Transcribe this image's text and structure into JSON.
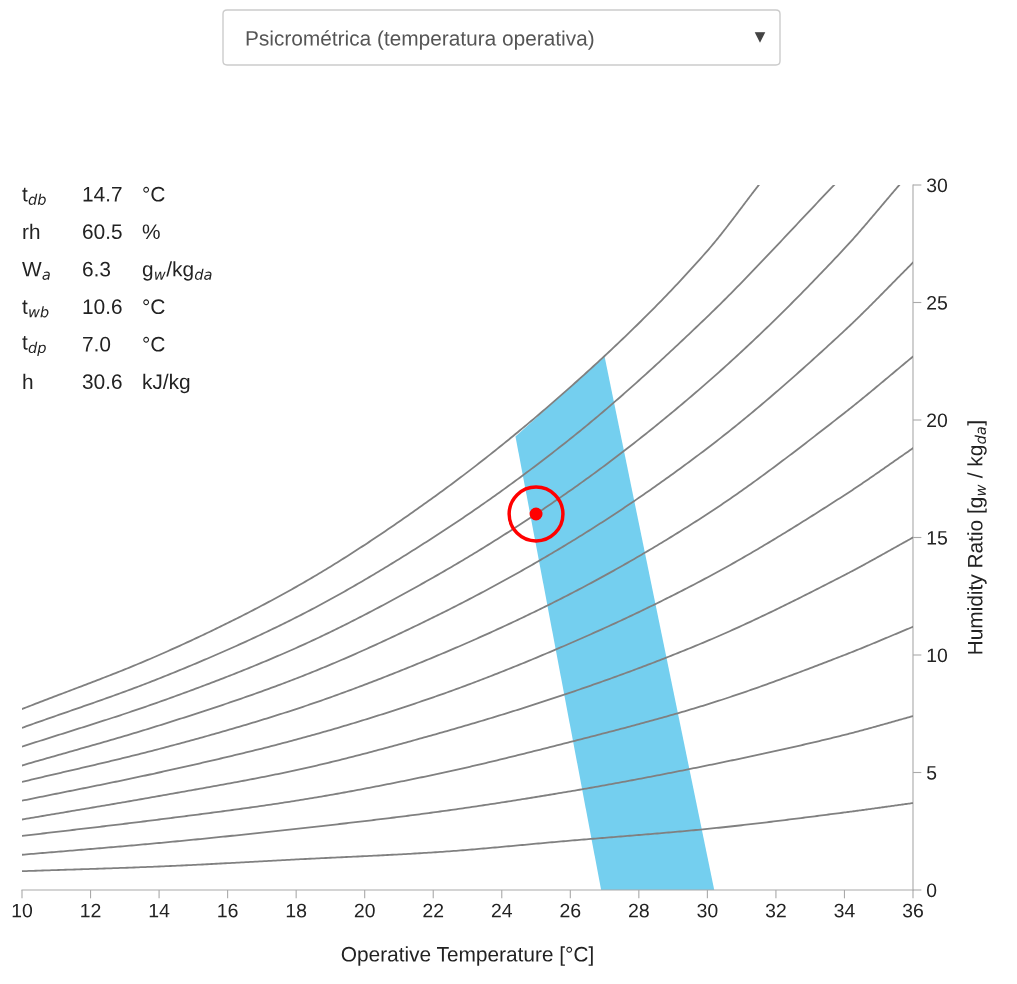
{
  "chart_data": {
    "type": "line",
    "title": "Psicrométrica (temperatura operativa)",
    "xlabel": "Operative Temperature [°C]",
    "ylabel": "Humidity Ratio [g$_{w}$ / kg$_{da}$]",
    "xlim": [
      10,
      36
    ],
    "xticks": [
      10,
      12,
      14,
      16,
      18,
      20,
      22,
      24,
      26,
      28,
      30,
      32,
      34,
      36
    ],
    "ylim": [
      0,
      30
    ],
    "yticks": [
      0,
      5,
      10,
      15,
      20,
      25,
      30
    ],
    "grid": false,
    "legend": false,
    "marker": "none",
    "line_style": "solid",
    "annotations": [
      "t$_{db}$",
      "14.7",
      "°C",
      "rh",
      "60.5",
      "%",
      "W$_{a}$",
      "6.3",
      "g$_{w}$/kg$_{da}$",
      "t$_{wb}$",
      "10.6",
      "°C",
      "t$_{dp}$",
      "7.0",
      "°C",
      "h",
      "30.6",
      "kJ/kg"
    ],
    "series": [
      {
        "type": "area",
        "color": "#74cfef",
        "x": [
          24.4,
          27.0,
          30.2,
          26.9
        ],
        "values": [
          19.3,
          22.7,
          0,
          0
        ]
      },
      {
        "color": "#808080",
        "x": [
          10,
          14,
          18,
          22,
          26,
          30,
          34,
          36
        ],
        "values": [
          0.8,
          1.0,
          1.3,
          1.6,
          2.1,
          2.6,
          3.3,
          3.7
        ]
      },
      {
        "color": "#808080",
        "x": [
          10,
          14,
          18,
          22,
          26,
          30,
          34,
          36
        ],
        "values": [
          1.5,
          2.0,
          2.6,
          3.3,
          4.2,
          5.3,
          6.6,
          7.4
        ]
      },
      {
        "color": "#808080",
        "x": [
          10,
          14,
          18,
          22,
          26,
          30,
          34,
          36
        ],
        "values": [
          2.3,
          3.0,
          3.8,
          4.9,
          6.3,
          7.9,
          10.0,
          11.2
        ]
      },
      {
        "color": "#808080",
        "x": [
          10,
          14,
          18,
          22,
          26,
          30,
          34,
          36
        ],
        "values": [
          3.0,
          4.0,
          5.1,
          6.6,
          8.4,
          10.6,
          13.4,
          15.0
        ]
      },
      {
        "color": "#808080",
        "x": [
          10,
          14,
          18,
          22,
          26,
          30,
          34,
          36
        ],
        "values": [
          3.8,
          5.0,
          6.4,
          8.2,
          10.5,
          13.3,
          16.8,
          18.8
        ]
      },
      {
        "color": "#808080",
        "x": [
          10,
          14,
          18,
          22,
          26,
          30,
          34,
          36
        ],
        "values": [
          4.6,
          6.0,
          7.7,
          9.9,
          12.6,
          16.0,
          20.3,
          22.7
        ]
      },
      {
        "color": "#808080",
        "x": [
          10,
          14,
          18,
          22,
          26,
          30,
          34,
          36
        ],
        "values": [
          5.3,
          7.0,
          9.0,
          11.6,
          14.8,
          18.8,
          23.8,
          26.7
        ]
      },
      {
        "color": "#808080",
        "x": [
          10,
          14,
          18,
          22,
          26,
          30,
          34,
          35.6
        ],
        "values": [
          6.1,
          8.0,
          10.3,
          13.3,
          17.0,
          21.6,
          27.3,
          30
        ]
      },
      {
        "color": "#808080",
        "x": [
          10,
          14,
          18,
          22,
          26,
          30,
          33.7
        ],
        "values": [
          6.9,
          9.0,
          11.6,
          15.0,
          19.2,
          24.4,
          30
        ]
      },
      {
        "color": "#808080",
        "x": [
          10,
          14,
          18,
          22,
          26,
          30,
          31.5
        ],
        "values": [
          7.7,
          10.0,
          12.9,
          16.7,
          21.4,
          27.2,
          30
        ]
      },
      {
        "type": "scatter",
        "color": "#ff0000",
        "marker": "circle",
        "x": [
          25.0
        ],
        "values": [
          16.0
        ]
      }
    ]
  }
}
